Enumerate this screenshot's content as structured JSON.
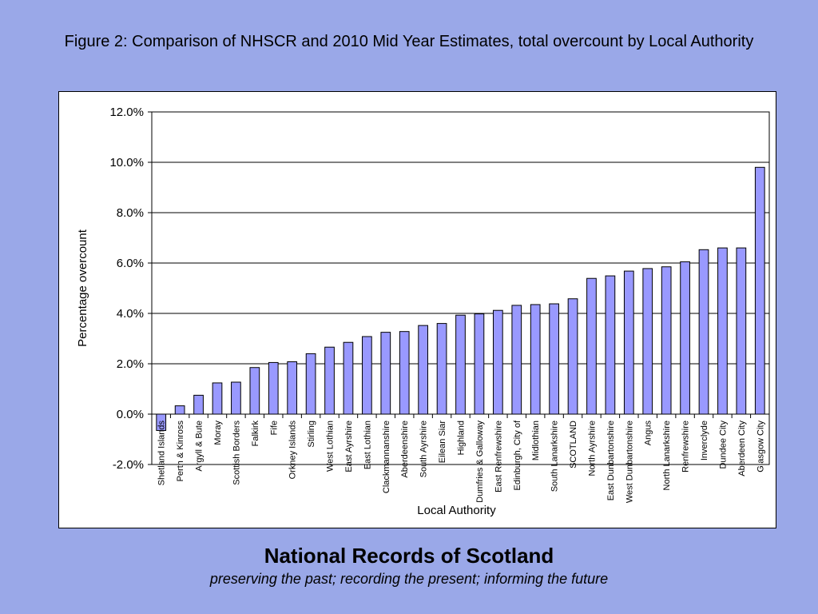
{
  "slide": {
    "title": "Figure 2: Comparison of NHSCR and 2010 Mid Year Estimates, total overcount by Local Authority",
    "footer_title": "National Records of Scotland",
    "footer_subtitle": "preserving the past; recording the present; informing the future"
  },
  "colors": {
    "background": "#9aa8e8",
    "bar_fill": "#9999ff",
    "bar_stroke": "#000000"
  },
  "chart_data": {
    "type": "bar",
    "title": "",
    "xlabel": "Local Authority",
    "ylabel": "Percentage overcount",
    "ylim": [
      -2.0,
      12.0
    ],
    "yticks": [
      -2.0,
      0.0,
      2.0,
      4.0,
      6.0,
      8.0,
      10.0,
      12.0
    ],
    "ytick_labels": [
      "-2.0%",
      "0.0%",
      "2.0%",
      "4.0%",
      "6.0%",
      "8.0%",
      "10.0%",
      "12.0%"
    ],
    "grid": true,
    "legend": "none",
    "categories": [
      "Shetland Islands",
      "Perth & Kinross",
      "Argyll & Bute",
      "Moray",
      "Scottish Borders",
      "Falkirk",
      "Fife",
      "Orkney Islands",
      "Stirling",
      "West Lothian",
      "East Ayrshire",
      "East Lothian",
      "Clackmannanshire",
      "Aberdeenshire",
      "South Ayrshire",
      "Eilean Siar",
      "Highland",
      "Dumfries & Galloway",
      "East Renfrewshire",
      "Edinburgh, City of",
      "Midlothian",
      "South Lanarkshire",
      "SCOTLAND",
      "North Ayrshire",
      "East Dunbartonshire",
      "West Dunbartonshire",
      "Angus",
      "North Lanarkshire",
      "Renfrewshire",
      "Inverclyde",
      "Dundee City",
      "Aberdeen City",
      "Glasgow City"
    ],
    "values": [
      -0.65,
      0.33,
      0.75,
      1.24,
      1.27,
      1.85,
      2.05,
      2.08,
      2.4,
      2.66,
      2.85,
      3.08,
      3.25,
      3.28,
      3.52,
      3.6,
      3.93,
      3.98,
      4.12,
      4.32,
      4.35,
      4.38,
      4.58,
      5.39,
      5.49,
      5.68,
      5.78,
      5.85,
      6.05,
      6.53,
      6.6,
      6.6,
      9.8
    ]
  }
}
